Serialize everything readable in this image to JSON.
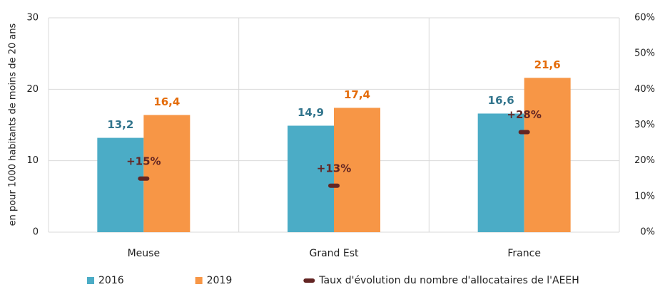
{
  "chart_data": {
    "type": "bar",
    "y_label": "en pour 1000 habitants de moins de 20 ans",
    "categories": [
      "Meuse",
      "Grand Est",
      "France"
    ],
    "series": [
      {
        "name": "2016",
        "color": "#4bacc6",
        "label_color": "#31748c",
        "values": [
          13.2,
          14.9,
          16.6
        ],
        "value_labels": [
          "13,2",
          "14,9",
          "16,6"
        ]
      },
      {
        "name": "2019",
        "color": "#f79646",
        "label_color": "#e46c0a",
        "values": [
          16.4,
          17.4,
          21.6
        ],
        "value_labels": [
          "16,4",
          "17,4",
          "21,6"
        ]
      },
      {
        "name": "Taux d'évolution du nombre d'allocataires de l'AEEH",
        "type": "marker",
        "axis": "y2",
        "color": "#632523",
        "label_color": "#632523",
        "values": [
          15,
          13,
          28
        ],
        "value_labels": [
          "+15%",
          "+13%",
          "+28%"
        ]
      }
    ],
    "ylim": [
      0,
      30
    ],
    "yticks": [
      0,
      10,
      20,
      30
    ],
    "y2lim": [
      0,
      60
    ],
    "y2ticks": [
      {
        "value": 0,
        "label": "0%"
      },
      {
        "value": 10,
        "label": "10%"
      },
      {
        "value": 20,
        "label": "20%"
      },
      {
        "value": 30,
        "label": "30%"
      },
      {
        "value": 40,
        "label": "40%"
      },
      {
        "value": 50,
        "label": "50%"
      },
      {
        "value": 60,
        "label": "60%"
      }
    ],
    "grid": true,
    "legend": "bottom"
  }
}
